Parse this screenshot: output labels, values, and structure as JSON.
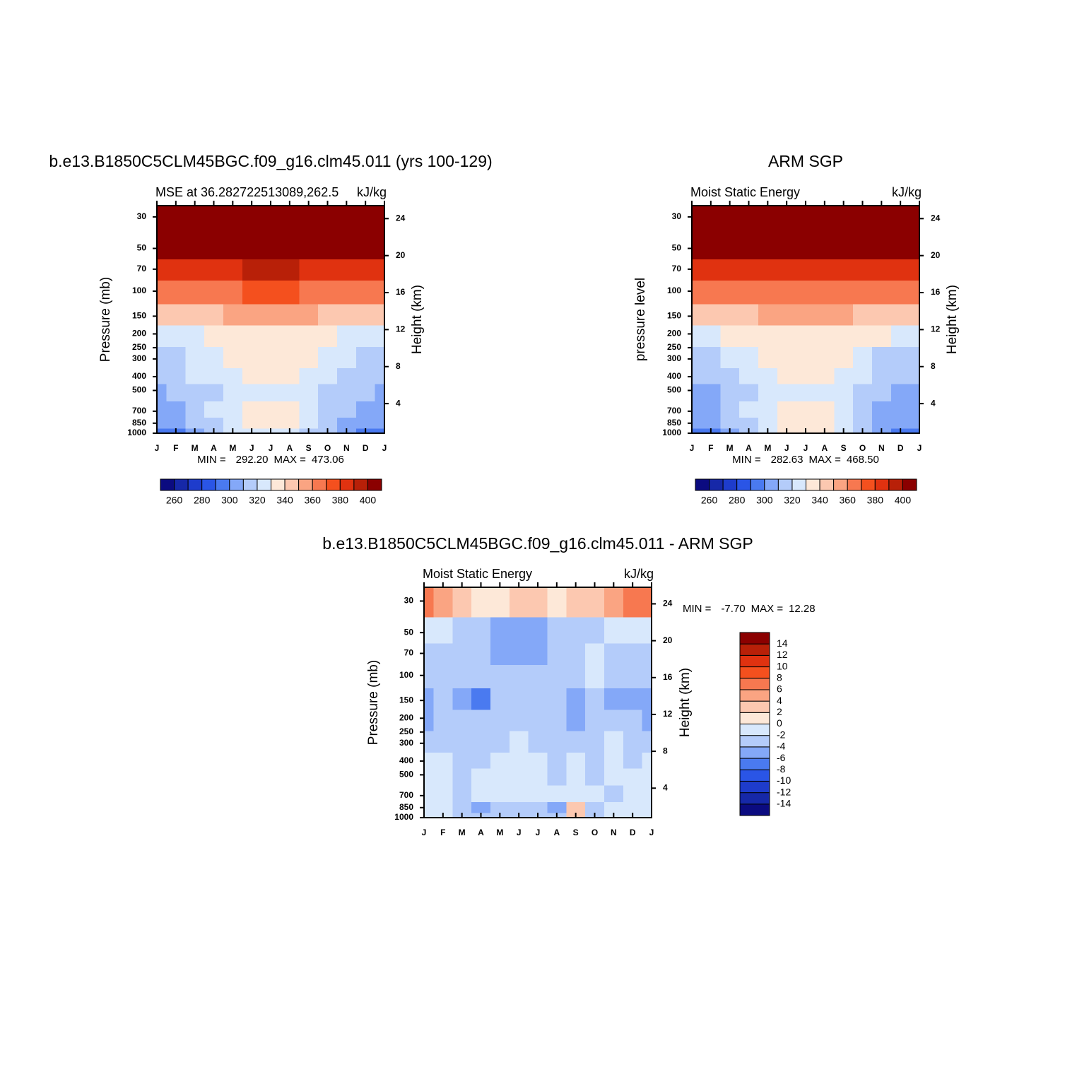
{
  "chart_data": [
    {
      "type": "contour",
      "title": "b.e13.B1850C5CLM45BGC.f09_g16.clm45.011 (yrs 100-129)",
      "subtitle_left": "MSE at 36.282722513089,262.5",
      "subtitle_right": "kJ/kg",
      "x_categories": [
        "J",
        "F",
        "M",
        "A",
        "M",
        "J",
        "J",
        "A",
        "S",
        "O",
        "N",
        "D",
        "J"
      ],
      "y": [
        1000,
        850,
        700,
        500,
        400,
        300,
        200,
        150,
        100,
        70,
        50,
        30
      ],
      "values": [
        [
          296,
          299,
          305,
          312,
          320,
          324,
          326,
          324,
          318,
          310,
          302,
          298,
          296
        ],
        [
          303,
          306,
          312,
          319,
          327,
          331,
          333,
          331,
          325,
          316,
          309,
          304,
          303
        ],
        [
          306,
          309,
          314,
          321,
          328,
          333,
          334,
          333,
          327,
          319,
          312,
          307,
          306
        ],
        [
          309,
          311,
          314,
          318,
          323,
          325,
          326,
          325,
          322,
          317,
          312,
          310,
          309
        ],
        [
          314,
          316,
          320,
          324,
          329,
          332,
          333,
          332,
          328,
          323,
          318,
          315,
          314
        ],
        [
          316,
          318,
          322,
          327,
          332,
          335,
          336,
          335,
          331,
          325,
          320,
          317,
          316
        ],
        [
          325,
          326,
          328,
          331,
          334,
          335,
          336,
          335,
          333,
          330,
          327,
          326,
          325
        ],
        [
          345,
          346,
          347,
          349,
          351,
          352,
          352,
          352,
          350,
          348,
          346,
          345,
          345
        ],
        [
          365,
          366,
          367,
          368,
          369,
          370,
          370,
          370,
          369,
          367,
          366,
          365,
          365
        ],
        [
          386,
          386,
          387,
          388,
          389,
          390,
          390,
          390,
          389,
          388,
          387,
          386,
          386
        ],
        [
          410,
          410,
          411,
          411,
          412,
          412,
          412,
          412,
          412,
          411,
          410,
          410,
          410
        ],
        [
          440,
          440,
          441,
          442,
          443,
          444,
          444,
          444,
          443,
          442,
          441,
          440,
          440
        ]
      ],
      "ylabel": "Pressure (mb)",
      "y2label": "Height (km)",
      "log_y": true,
      "ylim": [
        1000,
        25
      ],
      "yticks": [
        30,
        50,
        70,
        100,
        150,
        200,
        250,
        300,
        400,
        500,
        700,
        850,
        1000
      ],
      "y2lim": [
        0.8,
        25.4
      ],
      "y2ticks": [
        4,
        8,
        12,
        16,
        20,
        24
      ],
      "min_text": "MIN =",
      "min": {
        "value": 292.2,
        "label": "292.20"
      },
      "max_text": "MAX =",
      "max": {
        "value": 473.06,
        "label": "473.06"
      },
      "contour_levels": [
        260,
        270,
        280,
        290,
        300,
        310,
        320,
        330,
        340,
        350,
        360,
        370,
        380,
        390,
        400
      ],
      "colors": [
        "#0b0b80",
        "#1628a8",
        "#1e3ccc",
        "#2a55e6",
        "#4a7af0",
        "#84a8f8",
        "#b4ccfa",
        "#d8e8fc",
        "#fde8d8",
        "#fcc8b0",
        "#faa482",
        "#f77850",
        "#f4501e",
        "#e03210",
        "#b82008",
        "#8b0000"
      ],
      "colorbar_ticks": [
        260,
        280,
        300,
        320,
        340,
        360,
        380,
        400
      ],
      "colorbar_orientation": "horizontal"
    },
    {
      "type": "contour",
      "title": "ARM SGP",
      "subtitle_left": "Moist Static Energy",
      "subtitle_right": "kJ/kg",
      "x_categories": [
        "J",
        "F",
        "M",
        "A",
        "M",
        "J",
        "J",
        "A",
        "S",
        "O",
        "N",
        "D",
        "J"
      ],
      "y": [
        1000,
        850,
        700,
        500,
        400,
        300,
        200,
        150,
        100,
        70,
        50,
        30
      ],
      "values": [
        [
          290,
          295,
          304,
          316,
          328,
          336,
          338,
          336,
          326,
          312,
          300,
          292,
          290
        ],
        [
          300,
          303,
          310,
          319,
          327,
          332,
          334,
          332,
          326,
          315,
          307,
          302,
          300
        ],
        [
          303,
          306,
          312,
          320,
          327,
          332,
          333,
          332,
          326,
          317,
          309,
          305,
          303
        ],
        [
          306,
          308,
          313,
          318,
          324,
          327,
          328,
          327,
          323,
          316,
          310,
          307,
          306
        ],
        [
          311,
          313,
          318,
          323,
          329,
          332,
          333,
          332,
          328,
          321,
          315,
          312,
          311
        ],
        [
          315,
          317,
          322,
          327,
          333,
          336,
          337,
          336,
          332,
          325,
          319,
          316,
          315
        ],
        [
          328,
          329,
          331,
          334,
          336,
          337,
          338,
          337,
          336,
          333,
          330,
          329,
          328
        ],
        [
          346,
          347,
          348,
          349,
          351,
          352,
          352,
          352,
          350,
          349,
          347,
          346,
          346
        ],
        [
          364,
          364,
          365,
          366,
          367,
          368,
          368,
          368,
          367,
          366,
          365,
          364,
          364
        ],
        [
          384,
          384,
          384,
          384,
          385,
          385,
          385,
          385,
          385,
          384,
          384,
          384,
          384
        ],
        [
          408,
          408,
          408,
          409,
          409,
          409,
          409,
          409,
          409,
          408,
          408,
          408,
          408
        ],
        [
          438,
          438,
          439,
          440,
          441,
          441,
          441,
          441,
          441,
          440,
          439,
          438,
          438
        ]
      ],
      "ylabel": "pressure level",
      "y2label": "Height (km)",
      "log_y": true,
      "ylim": [
        1000,
        25
      ],
      "yticks": [
        30,
        50,
        70,
        100,
        150,
        200,
        250,
        300,
        400,
        500,
        700,
        850,
        1000
      ],
      "y2lim": [
        0.8,
        25.4
      ],
      "y2ticks": [
        4,
        8,
        12,
        16,
        20,
        24
      ],
      "min_text": "MIN =",
      "min": {
        "value": 282.63,
        "label": "282.63"
      },
      "max_text": "MAX =",
      "max": {
        "value": 468.5,
        "label": "468.50"
      },
      "contour_levels": [
        260,
        270,
        280,
        290,
        300,
        310,
        320,
        330,
        340,
        350,
        360,
        370,
        380,
        390,
        400
      ],
      "colors": [
        "#0b0b80",
        "#1628a8",
        "#1e3ccc",
        "#2a55e6",
        "#4a7af0",
        "#84a8f8",
        "#b4ccfa",
        "#d8e8fc",
        "#fde8d8",
        "#fcc8b0",
        "#faa482",
        "#f77850",
        "#f4501e",
        "#e03210",
        "#b82008",
        "#8b0000"
      ],
      "colorbar_ticks": [
        260,
        280,
        300,
        320,
        340,
        360,
        380,
        400
      ],
      "colorbar_orientation": "horizontal"
    },
    {
      "type": "contour",
      "title": "b.e13.B1850C5CLM45BGC.f09_g16.clm45.011 - ARM SGP",
      "subtitle_left": "Moist Static Energy",
      "subtitle_right": "kJ/kg",
      "x_categories": [
        "J",
        "F",
        "M",
        "A",
        "M",
        "J",
        "J",
        "A",
        "S",
        "O",
        "N",
        "D",
        "J"
      ],
      "y": [
        1000,
        850,
        700,
        500,
        400,
        300,
        200,
        150,
        100,
        70,
        50,
        30
      ],
      "values": [
        [
          -1,
          -1,
          -3,
          -3,
          -4,
          -4,
          -3,
          -4,
          2,
          -3,
          -2,
          -1,
          -1
        ],
        [
          -1,
          -2,
          -3,
          -5,
          -4,
          -3,
          -3,
          -6,
          3,
          -3,
          -1,
          -1,
          -1
        ],
        [
          -2,
          -2,
          -3,
          -2,
          -1,
          -1,
          -1,
          -2,
          -1,
          -2,
          -3,
          -1,
          -2
        ],
        [
          -1,
          -1,
          -3,
          -2,
          -1,
          -1,
          -1,
          -3,
          -1,
          -3,
          -1,
          -1,
          -1
        ],
        [
          -1,
          -2,
          -3,
          -3,
          -1,
          -1,
          -1,
          -3,
          -1,
          -3,
          -2,
          -3,
          -1
        ],
        [
          -3,
          -3,
          -3,
          -3,
          -3,
          -2,
          -3,
          -3,
          -3,
          -3,
          -1,
          -3,
          -3
        ],
        [
          -5,
          -3,
          -4,
          -3,
          -3,
          -3,
          -3,
          -3,
          -5,
          -3,
          -3,
          -4,
          -5
        ],
        [
          -6,
          -4,
          -5,
          -7,
          -4,
          -3,
          -4,
          -4,
          -6,
          -4,
          -5,
          -5,
          -6
        ],
        [
          -3,
          -3,
          -4,
          -3,
          -3,
          -3,
          -3,
          -3,
          -3,
          -1,
          -3,
          -3,
          -3
        ],
        [
          -3,
          -3,
          -3,
          -4,
          -5,
          -5,
          -5,
          -4,
          -3,
          -1,
          -3,
          -3,
          -3
        ],
        [
          -1,
          -1,
          -3,
          -4,
          -5,
          -5,
          -5,
          -4,
          -3,
          -3,
          -1,
          -1,
          -1
        ],
        [
          6,
          5,
          3,
          1,
          1,
          2,
          3,
          1,
          2,
          3,
          4,
          6,
          6
        ]
      ],
      "ylabel": "Pressure (mb)",
      "y2label": "Height (km)",
      "log_y": true,
      "ylim": [
        1000,
        24
      ],
      "yticks": [
        30,
        50,
        70,
        100,
        150,
        200,
        250,
        300,
        400,
        500,
        700,
        850,
        1000
      ],
      "y2lim": [
        0.8,
        25.8
      ],
      "y2ticks": [
        4,
        8,
        12,
        16,
        20,
        24
      ],
      "min_text": "MIN =",
      "min": {
        "value": -7.7,
        "label": "-7.70"
      },
      "max_text": "MAX =",
      "max": {
        "value": 12.28,
        "label": "12.28"
      },
      "contour_levels": [
        -14,
        -12,
        -10,
        -8,
        -6,
        -4,
        -2,
        0,
        2,
        4,
        6,
        8,
        10,
        12,
        14
      ],
      "colors": [
        "#0b0b80",
        "#1628a8",
        "#1e3ccc",
        "#2a55e6",
        "#4a7af0",
        "#84a8f8",
        "#b4ccfa",
        "#d8e8fc",
        "#fde8d8",
        "#fcc8b0",
        "#faa482",
        "#f77850",
        "#f4501e",
        "#e03210",
        "#b82008",
        "#8b0000"
      ],
      "colorbar_ticks": [
        -14,
        -12,
        -10,
        -8,
        -6,
        -4,
        -2,
        0,
        2,
        4,
        6,
        8,
        10,
        12,
        14
      ],
      "colorbar_orientation": "vertical"
    }
  ]
}
